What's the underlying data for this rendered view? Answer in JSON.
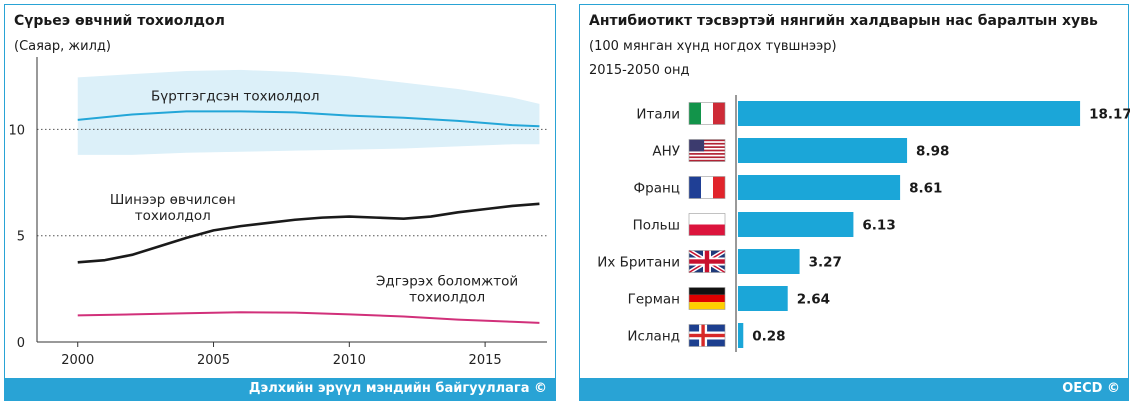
{
  "left": {
    "title": "Сүрьеэ өвчний тохиолдол",
    "subtitle": "(Саяар, жилд)",
    "footer": "Дэлхийн эрүүл мэндийн байгууллага ©"
  },
  "right": {
    "title": "Антибиотикт тэсвэртэй нянгийн халдварын нас баралтын хувь",
    "subtitle": "(100 мянган хүнд ногдох түвшнээр)",
    "subtitle2": "2015-2050 онд",
    "footer": "OECD ©"
  },
  "colors": {
    "accent": "#29a3d5",
    "bar": "#1ba6d8",
    "band": "#dcf0f9",
    "registered": "#23a6d8",
    "new": "#1a1a1a",
    "cured": "#d1307a"
  },
  "chart_data": [
    {
      "type": "line",
      "title": "Сүрьеэ өвчний тохиолдол",
      "subtitle": "(Саяар, жилд)",
      "xlim": [
        1998.5,
        2017.5
      ],
      "ylim": [
        0,
        13.5
      ],
      "x_ticks": [
        2000,
        2005,
        2010,
        2015
      ],
      "y_ticks": [
        0,
        5,
        10
      ],
      "reference_lines": [
        5,
        10
      ],
      "series": [
        {
          "name": "Бүртгэгдсэн тохиолдол",
          "color": "#23a6d8",
          "x": [
            2000,
            2002,
            2004,
            2006,
            2008,
            2010,
            2012,
            2014,
            2016,
            2017
          ],
          "values": [
            10.45,
            10.7,
            10.85,
            10.85,
            10.8,
            10.65,
            10.55,
            10.4,
            10.2,
            10.15
          ],
          "band_upper": [
            12.45,
            12.6,
            12.75,
            12.8,
            12.7,
            12.5,
            12.2,
            11.9,
            11.5,
            11.2
          ],
          "band_lower": [
            8.8,
            8.8,
            8.9,
            8.95,
            9.0,
            9.05,
            9.1,
            9.2,
            9.3,
            9.3
          ]
        },
        {
          "name": "Шинээр өвчилсөн тохиолдол",
          "color": "#1a1a1a",
          "x": [
            2000,
            2001,
            2002,
            2003,
            2004,
            2005,
            2006,
            2007,
            2008,
            2009,
            2010,
            2011,
            2012,
            2013,
            2014,
            2015,
            2016,
            2017
          ],
          "values": [
            3.75,
            3.85,
            4.1,
            4.5,
            4.9,
            5.25,
            5.45,
            5.6,
            5.75,
            5.85,
            5.9,
            5.85,
            5.8,
            5.9,
            6.1,
            6.25,
            6.4,
            6.5
          ]
        },
        {
          "name": "Эдгэрэх боломжтой тохиолдол",
          "color": "#d1307a",
          "x": [
            2000,
            2002,
            2004,
            2006,
            2008,
            2010,
            2012,
            2014,
            2016,
            2017
          ],
          "values": [
            1.25,
            1.3,
            1.35,
            1.4,
            1.38,
            1.3,
            1.2,
            1.05,
            0.95,
            0.9
          ]
        }
      ],
      "annotations": [
        {
          "series": 0,
          "lines": [
            "Бүртгэгдсэн тохиолдол"
          ]
        },
        {
          "series": 1,
          "lines": [
            "Шинээр өвчилсөн",
            "тохиолдол"
          ]
        },
        {
          "series": 2,
          "lines": [
            "Эдгэрэх боломжтой",
            "тохиолдол"
          ]
        }
      ]
    },
    {
      "type": "bar",
      "orientation": "horizontal",
      "title": "Антибиотикт тэсвэртэй нянгийн халдварын нас баралтын хувь",
      "subtitle": "(100 мянган хүнд ногдох түвшнээр)",
      "period": "2015-2050 онд",
      "xlim": [
        0,
        19.6
      ],
      "categories": [
        "Итали",
        "АНУ",
        "Франц",
        "Польш",
        "Их Британи",
        "Герман",
        "Исланд"
      ],
      "values": [
        18.17,
        8.98,
        8.61,
        6.13,
        3.27,
        2.64,
        0.28
      ],
      "value_labels": [
        "18.17",
        "8.98",
        "8.61",
        "6.13",
        "3.27",
        "2.64",
        "0.28"
      ],
      "flags": [
        "italy-flag-icon",
        "usa-flag-icon",
        "france-flag-icon",
        "poland-flag-icon",
        "uk-flag-icon",
        "germany-flag-icon",
        "iceland-flag-icon"
      ]
    }
  ]
}
